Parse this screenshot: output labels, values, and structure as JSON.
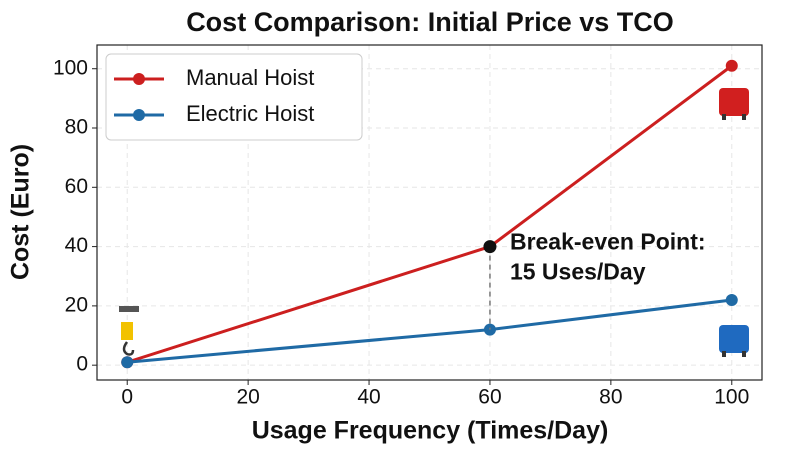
{
  "chart_data": {
    "type": "line",
    "title": "Cost Comparison: Initial Price vs TCO",
    "x_label": "Usage Frequency (Times/Day)",
    "y_label": "Cost (Euro)",
    "x": [
      0,
      60,
      100
    ],
    "series": [
      {
        "name": "Manual Hoist",
        "color": "#cc1f1f",
        "values": [
          1,
          40,
          101
        ]
      },
      {
        "name": "Electric Hoist",
        "color": "#1f6aa5",
        "values": [
          1,
          12,
          22
        ]
      }
    ],
    "xlim": [
      -5,
      105
    ],
    "xticks": [
      0,
      20,
      40,
      60,
      80,
      100
    ],
    "ylim": [
      -5,
      108
    ],
    "yticks": [
      0,
      20,
      40,
      60,
      80,
      100
    ],
    "grid": true,
    "legend": "upper left",
    "annotation": {
      "lines": [
        "Break-even Point:",
        "15 Uses/Day"
      ],
      "x": 60,
      "y": 40
    }
  }
}
